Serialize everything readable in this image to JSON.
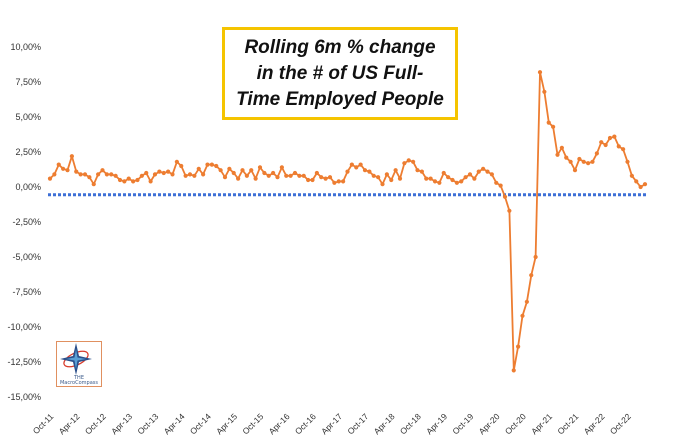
{
  "chart_data": {
    "type": "line",
    "title": "Rolling 6m % change\nin the # of US Full-\nTime Employed People",
    "ylim": [
      -15,
      10
    ],
    "yticks": [
      10,
      7.5,
      5,
      2.5,
      0,
      -2.5,
      -5,
      -7.5,
      -10,
      -12.5,
      -15
    ],
    "ytick_labels": [
      "10,00%",
      "7,50%",
      "5,00%",
      "2,50%",
      "0,00%",
      "-2,50%",
      "-5,00%",
      "-7,50%",
      "-10,00%",
      "-12,50%",
      "-15,00%"
    ],
    "xtick_labels": [
      "Oct-11",
      "Apr-12",
      "Oct-12",
      "Apr-13",
      "Oct-13",
      "Apr-14",
      "Oct-14",
      "Apr-15",
      "Oct-15",
      "Apr-16",
      "Oct-16",
      "Apr-17",
      "Oct-17",
      "Apr-18",
      "Oct-18",
      "Apr-19",
      "Oct-19",
      "Apr-20",
      "Oct-20",
      "Apr-21",
      "Oct-21",
      "Apr-22",
      "Oct-22"
    ],
    "x_start": "Oct-11",
    "x_end": "Nov-22",
    "reference_line": {
      "value": -0.55,
      "style": "dotted",
      "color": "#3d6fd6"
    },
    "series": [
      {
        "color": "#ed7d31",
        "values": [
          0.6,
          0.9,
          1.6,
          1.3,
          1.2,
          2.2,
          1.1,
          0.9,
          0.9,
          0.7,
          0.2,
          0.9,
          1.2,
          0.9,
          0.9,
          0.8,
          0.5,
          0.4,
          0.6,
          0.4,
          0.5,
          0.8,
          1.0,
          0.4,
          0.9,
          1.1,
          1.0,
          1.1,
          0.9,
          1.8,
          1.5,
          0.8,
          0.9,
          0.8,
          1.3,
          0.9,
          1.6,
          1.6,
          1.5,
          1.2,
          0.7,
          1.3,
          1.0,
          0.6,
          1.2,
          0.8,
          1.2,
          0.6,
          1.4,
          1.0,
          0.8,
          1.0,
          0.7,
          1.4,
          0.8,
          0.8,
          1.0,
          0.8,
          0.8,
          0.5,
          0.5,
          1.0,
          0.7,
          0.6,
          0.7,
          0.3,
          0.4,
          0.4,
          1.1,
          1.6,
          1.4,
          1.6,
          1.2,
          1.1,
          0.8,
          0.7,
          0.2,
          0.9,
          0.5,
          1.2,
          0.6,
          1.7,
          1.9,
          1.8,
          1.2,
          1.1,
          0.6,
          0.6,
          0.4,
          0.3,
          1.0,
          0.7,
          0.5,
          0.3,
          0.4,
          0.7,
          0.9,
          0.6,
          1.1,
          1.3,
          1.1,
          0.9,
          0.3,
          0.1,
          -0.7,
          -1.7,
          -13.1,
          -11.4,
          -9.2,
          -8.2,
          -6.3,
          -5.0,
          8.2,
          6.8,
          4.6,
          4.3,
          2.3,
          2.8,
          2.1,
          1.8,
          1.2,
          2.0,
          1.8,
          1.7,
          1.8,
          2.4,
          3.2,
          3.0,
          3.5,
          3.6,
          2.9,
          2.7,
          1.8,
          0.8,
          0.4,
          0.0,
          0.2
        ]
      }
    ],
    "grid": false,
    "legend": "none"
  },
  "logo": {
    "text_top": "THE",
    "text_bottom": "MacroCompass",
    "icon": "compass-star-icon"
  }
}
